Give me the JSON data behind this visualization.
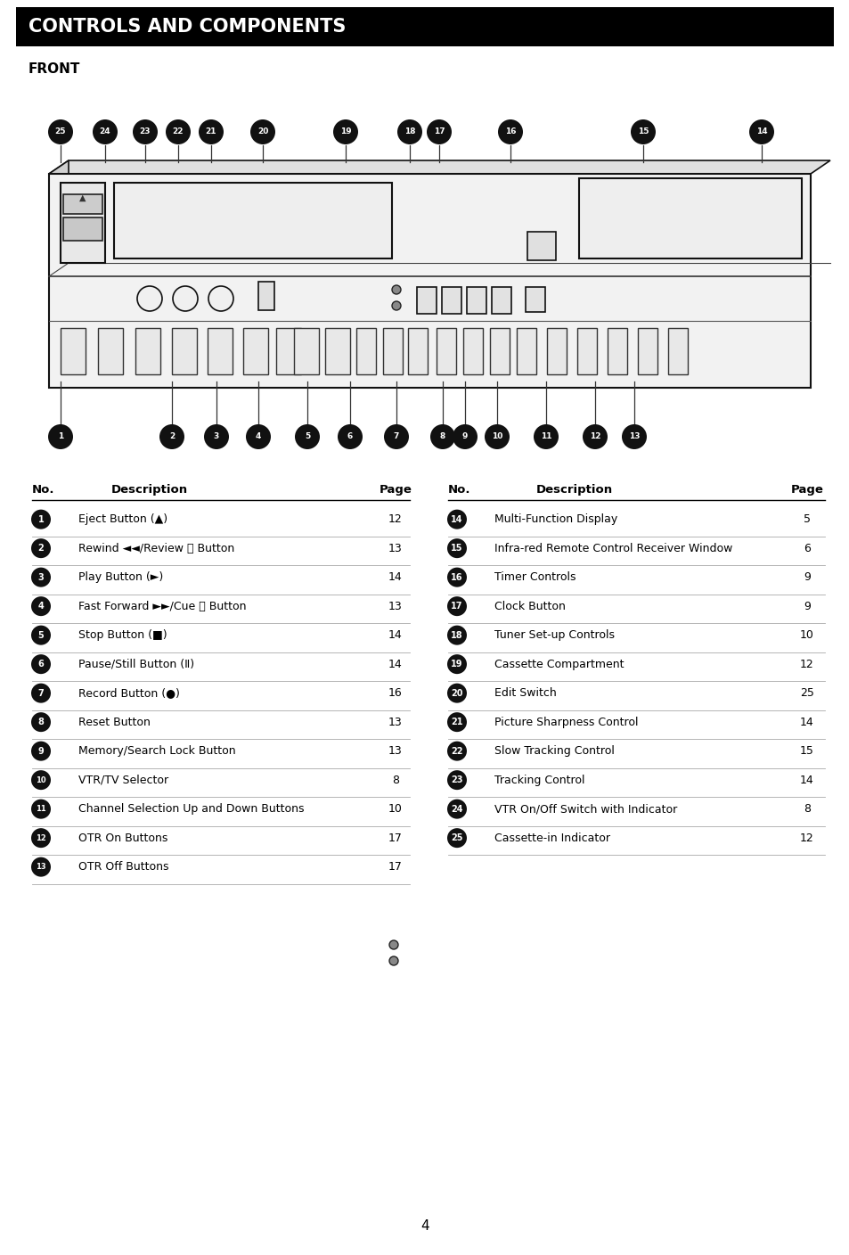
{
  "title": "CONTROLS AND COMPONENTS",
  "section": "FRONT",
  "bg_color": "#ffffff",
  "header_bg": "#000000",
  "header_text_color": "#ffffff",
  "left_table": {
    "rows": [
      [
        "1",
        "Eject Button (▲)",
        "12"
      ],
      [
        "2",
        "Rewind ◄◄/Review ⎕ Button",
        "13"
      ],
      [
        "3",
        "Play Button (►)",
        "14"
      ],
      [
        "4",
        "Fast Forward ►►/Cue ⎕ Button",
        "13"
      ],
      [
        "5",
        "Stop Button (■)",
        "14"
      ],
      [
        "6",
        "Pause/Still Button (Ⅱ)",
        "14"
      ],
      [
        "7",
        "Record Button (●)",
        "16"
      ],
      [
        "8",
        "Reset Button",
        "13"
      ],
      [
        "9",
        "Memory/Search Lock Button",
        "13"
      ],
      [
        "10",
        "VTR/TV Selector",
        "8"
      ],
      [
        "11",
        "Channel Selection Up and Down Buttons",
        "10"
      ],
      [
        "12",
        "OTR On Buttons",
        "17"
      ],
      [
        "13",
        "OTR Off Buttons",
        "17"
      ]
    ]
  },
  "right_table": {
    "rows": [
      [
        "14",
        "Multi-Function Display",
        "5"
      ],
      [
        "15",
        "Infra-red Remote Control Receiver Window",
        "6"
      ],
      [
        "16",
        "Timer Controls",
        "9"
      ],
      [
        "17",
        "Clock Button",
        "9"
      ],
      [
        "18",
        "Tuner Set-up Controls",
        "10"
      ],
      [
        "19",
        "Cassette Compartment",
        "12"
      ],
      [
        "20",
        "Edit Switch",
        "25"
      ],
      [
        "21",
        "Picture Sharpness Control",
        "14"
      ],
      [
        "22",
        "Slow Tracking Control",
        "15"
      ],
      [
        "23",
        "Tracking Control",
        "14"
      ],
      [
        "24",
        "VTR On/Off Switch with Indicator",
        "8"
      ],
      [
        "25",
        "Cassette-in Indicator",
        "12"
      ]
    ]
  },
  "top_callouts": [
    [
      68,
      "25"
    ],
    [
      118,
      "24"
    ],
    [
      163,
      "23"
    ],
    [
      200,
      "22"
    ],
    [
      237,
      "21"
    ],
    [
      295,
      "20"
    ],
    [
      388,
      "19"
    ],
    [
      460,
      "18"
    ],
    [
      493,
      "17"
    ],
    [
      573,
      "16"
    ],
    [
      722,
      "15"
    ],
    [
      855,
      "14"
    ]
  ],
  "bot_callouts": [
    [
      68,
      "1"
    ],
    [
      193,
      "2"
    ],
    [
      243,
      "3"
    ],
    [
      290,
      "4"
    ],
    [
      345,
      "5"
    ],
    [
      393,
      "6"
    ],
    [
      445,
      "7"
    ],
    [
      497,
      "8"
    ],
    [
      522,
      "9"
    ],
    [
      558,
      "10"
    ],
    [
      613,
      "11"
    ],
    [
      668,
      "12"
    ],
    [
      712,
      "13"
    ]
  ],
  "page_number": "4"
}
